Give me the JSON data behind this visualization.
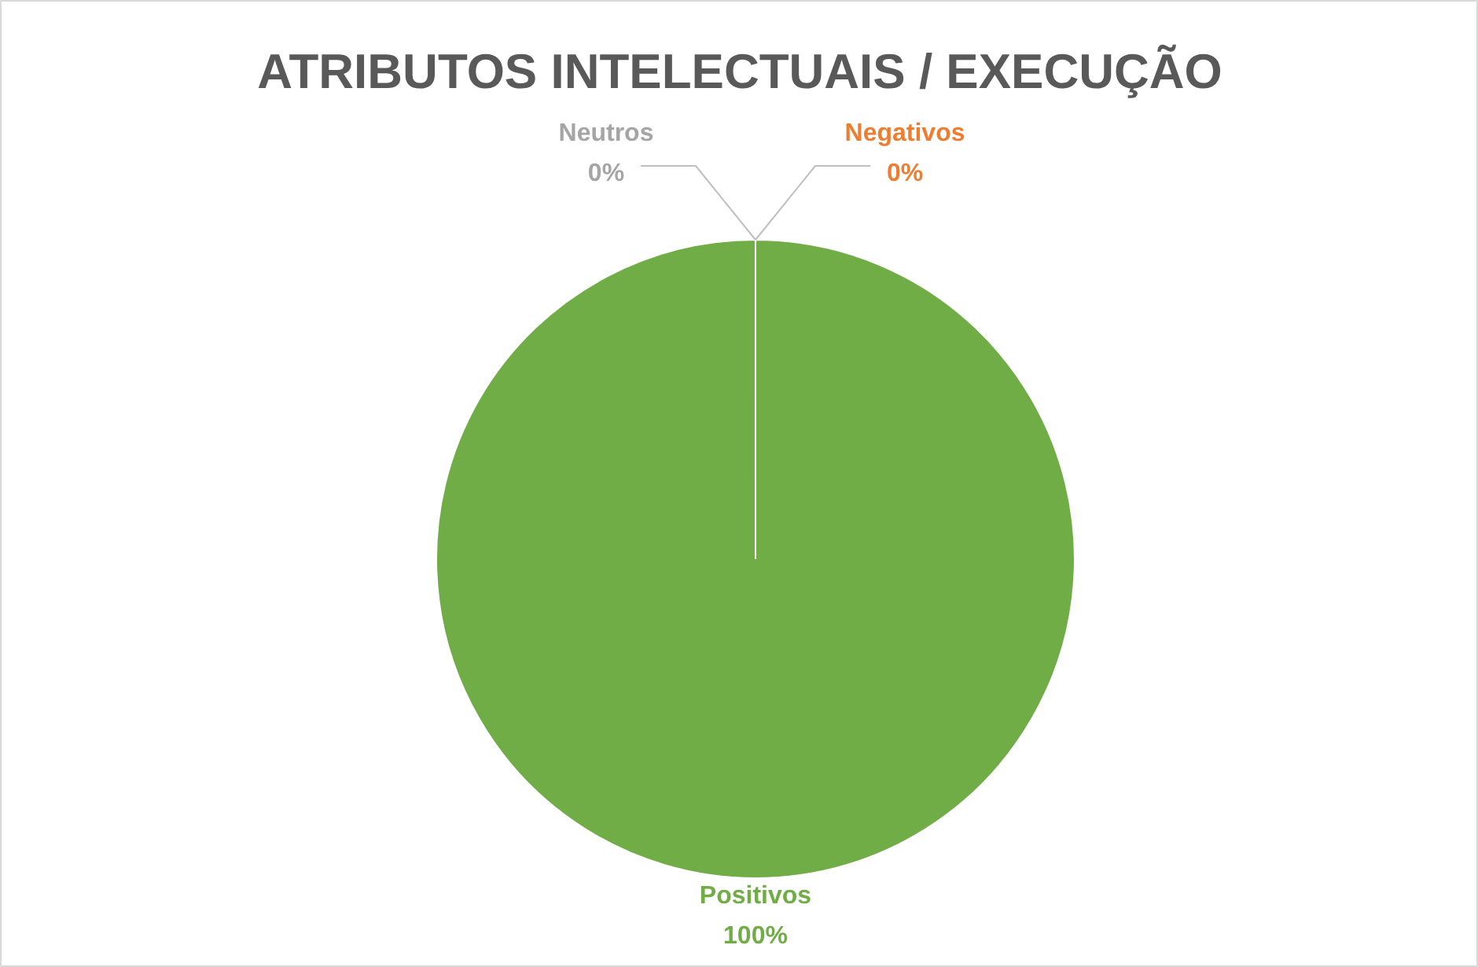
{
  "chart_data": {
    "type": "pie",
    "title": "ATRIBUTOS INTELECTUAIS / EXECUÇÃO",
    "categories": [
      "Positivos",
      "Neutros",
      "Negativos"
    ],
    "values": [
      100,
      0,
      0
    ],
    "colors": [
      "#70ad47",
      "#a5a5a5",
      "#ed7d31"
    ],
    "value_labels": [
      "100%",
      "0%",
      "0%"
    ]
  }
}
